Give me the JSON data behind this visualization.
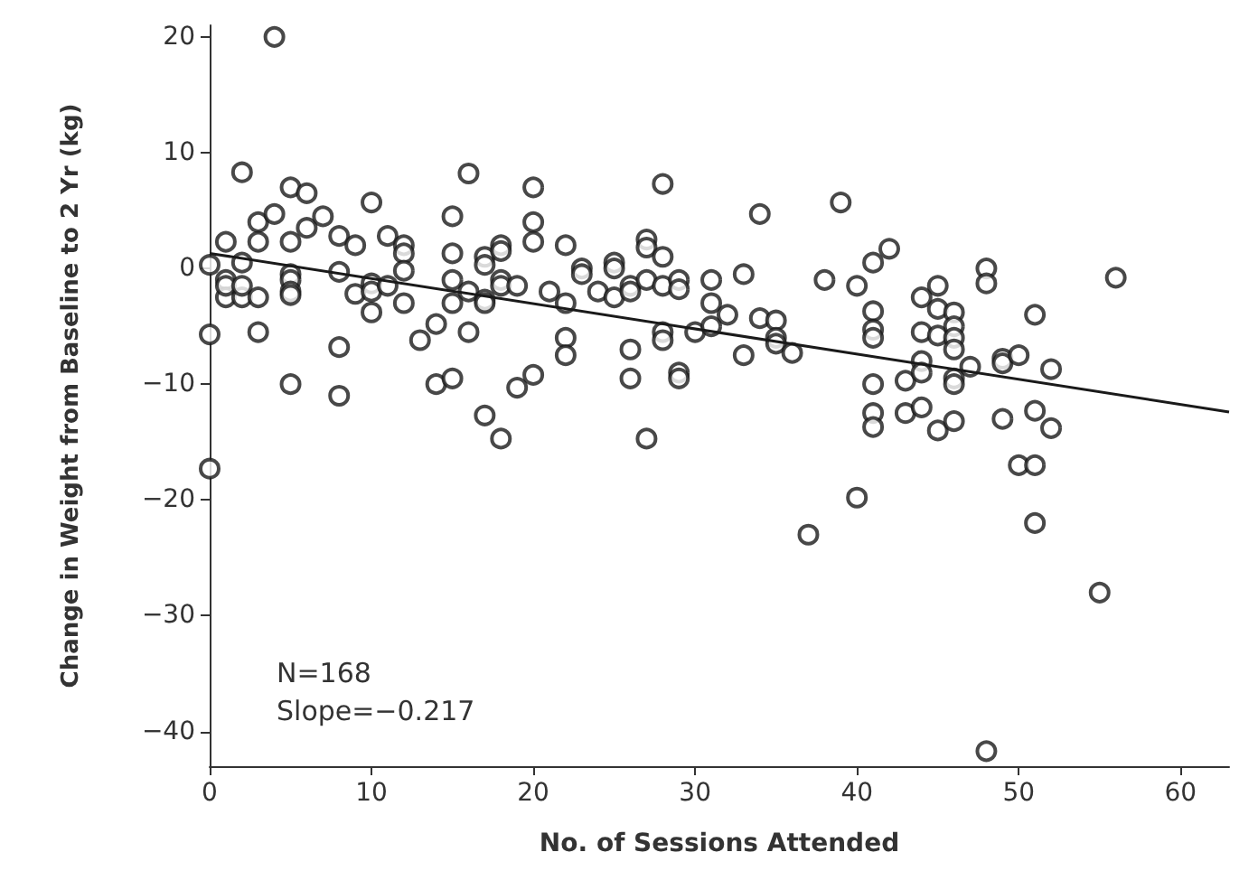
{
  "chart_data": {
    "type": "scatter",
    "xlabel": "No. of Sessions Attended",
    "ylabel": "Change in Weight from Baseline to 2 Yr (kg)",
    "xlim": [
      0,
      63
    ],
    "xticks": [
      0,
      10,
      20,
      30,
      40,
      50,
      60
    ],
    "ylim": [
      -43,
      21
    ],
    "yticks": [
      -40,
      -30,
      -20,
      -10,
      0,
      10,
      20
    ],
    "grid": false,
    "annotations": [
      "N=168",
      "Slope=−0.217"
    ],
    "series": [
      {
        "marker": "circle",
        "color": "#1a1a1a",
        "x": [
          0,
          0,
          0,
          1,
          1,
          1,
          1,
          2,
          2,
          2,
          2,
          3,
          3,
          3,
          3,
          4,
          4,
          5,
          5,
          5,
          5,
          5,
          5,
          5,
          6,
          6,
          7,
          8,
          8,
          8,
          8,
          9,
          9,
          10,
          10,
          10,
          10,
          11,
          11,
          12,
          12,
          12,
          12,
          13,
          14,
          14,
          15,
          15,
          15,
          15,
          15,
          16,
          16,
          16,
          17,
          17,
          17,
          17,
          17,
          18,
          18,
          18,
          18,
          18,
          19,
          19,
          20,
          20,
          20,
          20,
          21,
          22,
          22,
          22,
          22,
          23,
          23,
          24,
          25,
          25,
          25,
          26,
          26,
          26,
          26,
          27,
          27,
          27,
          27,
          28,
          28,
          28,
          28,
          28,
          29,
          29,
          29,
          29,
          30,
          31,
          31,
          31,
          32,
          33,
          33,
          34,
          34,
          35,
          35,
          35,
          36,
          37,
          38,
          39,
          40,
          40,
          41,
          41,
          41,
          41,
          41,
          41,
          41,
          42,
          43,
          43,
          44,
          44,
          44,
          44,
          44,
          45,
          45,
          45,
          45,
          46,
          46,
          46,
          46,
          46,
          46,
          46,
          47,
          48,
          48,
          48,
          49,
          49,
          49,
          50,
          50,
          51,
          51,
          51,
          51,
          52,
          52,
          55,
          56
        ],
        "values": [
          0.3,
          -5.7,
          -17.3,
          2.3,
          -1,
          -2.5,
          -1.5,
          8.3,
          0.5,
          -2.5,
          -1.5,
          4,
          2.3,
          -2.5,
          -5.5,
          20,
          4.7,
          7,
          2.3,
          -0.5,
          -1,
          -2,
          -2.3,
          -10,
          6.5,
          3.5,
          4.5,
          2.8,
          -0.3,
          -6.8,
          -11,
          2,
          -2.2,
          5.7,
          -1.3,
          -2,
          -3.8,
          2.8,
          -1.5,
          2,
          1.3,
          -0.2,
          -3,
          -6.2,
          -4.8,
          -10,
          4.5,
          1.3,
          -1,
          -3,
          -9.5,
          8.2,
          -2,
          -5.5,
          1,
          0.3,
          -2.7,
          -3,
          -12.7,
          2,
          1.5,
          -1,
          -1.5,
          -14.7,
          -1.5,
          -10.3,
          7,
          4,
          2.3,
          -9.2,
          -2,
          2,
          -3,
          -6,
          -7.5,
          0,
          -0.5,
          -2,
          0.5,
          0,
          -2.5,
          -1.5,
          -2,
          -7,
          -9.5,
          2.5,
          1.8,
          -1,
          -14.7,
          7.3,
          1,
          -1.5,
          -5.5,
          -6.2,
          -1,
          -1.8,
          -9,
          -9.5,
          -5.5,
          -1,
          -3,
          -5,
          -4,
          -0.5,
          -7.5,
          4.7,
          -4.3,
          -4.5,
          -6,
          -6.5,
          -7.3,
          -23,
          -1,
          5.7,
          -1.5,
          -19.8,
          0.5,
          -3.7,
          -5.3,
          -6,
          -10,
          -12.5,
          -13.7,
          1.7,
          -9.7,
          -12.5,
          -2.5,
          -5.5,
          -8,
          -9,
          -12,
          -1.5,
          -3.5,
          -5.8,
          -14,
          -3.8,
          -5,
          -6,
          -7,
          -9.5,
          -10,
          -13.2,
          -8.5,
          0,
          -1.3,
          -41.7,
          -7.8,
          -8.2,
          -13,
          -7.5,
          -17,
          -4,
          -12.3,
          -17,
          -22,
          -8.7,
          -13.8,
          -28,
          -0.8
        ]
      },
      {
        "type": "line",
        "color": "#1a1a1a",
        "x": [
          0,
          63
        ],
        "values": [
          1.3,
          -12.4
        ]
      }
    ]
  }
}
